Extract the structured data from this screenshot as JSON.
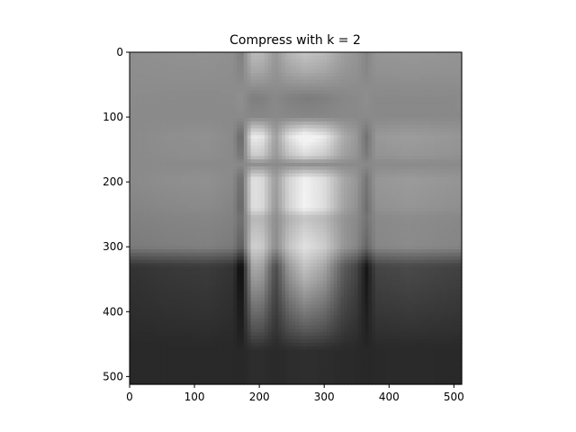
{
  "chart_data": {
    "type": "heatmap",
    "title": "Compress with k = 2",
    "xlabel": "",
    "ylabel": "",
    "colormap": "gray",
    "image_size": [
      512,
      512
    ],
    "xlim": [
      0,
      512
    ],
    "ylim": [
      512,
      0
    ],
    "xticks": [
      0,
      100,
      200,
      300,
      400,
      500
    ],
    "yticks": [
      0,
      100,
      200,
      300,
      400,
      500
    ],
    "xtick_labels": [
      "0",
      "100",
      "200",
      "300",
      "400",
      "500"
    ],
    "ytick_labels": [
      "0",
      "100",
      "200",
      "300",
      "400",
      "500"
    ],
    "rank_k": 2,
    "column_profile": [
      {
        "x": 0,
        "v": 0.5
      },
      {
        "x": 60,
        "v": 0.52
      },
      {
        "x": 120,
        "v": 0.53
      },
      {
        "x": 160,
        "v": 0.5
      },
      {
        "x": 172,
        "v": 0.34
      },
      {
        "x": 190,
        "v": 0.92
      },
      {
        "x": 205,
        "v": 0.88
      },
      {
        "x": 225,
        "v": 0.58
      },
      {
        "x": 245,
        "v": 0.85
      },
      {
        "x": 270,
        "v": 1.0
      },
      {
        "x": 300,
        "v": 0.9
      },
      {
        "x": 330,
        "v": 0.64
      },
      {
        "x": 350,
        "v": 0.56
      },
      {
        "x": 365,
        "v": 0.4
      },
      {
        "x": 380,
        "v": 0.56
      },
      {
        "x": 430,
        "v": 0.58
      },
      {
        "x": 512,
        "v": 0.55
      }
    ],
    "row_profile": [
      {
        "y": 0,
        "v": 0.56
      },
      {
        "y": 30,
        "v": 0.44
      },
      {
        "y": 70,
        "v": 0.22
      },
      {
        "y": 100,
        "v": 0.28
      },
      {
        "y": 130,
        "v": 0.88
      },
      {
        "y": 160,
        "v": 0.68
      },
      {
        "y": 172,
        "v": 0.3
      },
      {
        "y": 195,
        "v": 0.8
      },
      {
        "y": 240,
        "v": 0.84
      },
      {
        "y": 255,
        "v": 0.62
      },
      {
        "y": 300,
        "v": 0.8
      },
      {
        "y": 330,
        "v": 1.0
      },
      {
        "y": 350,
        "v": 0.92
      },
      {
        "y": 390,
        "v": 0.72
      },
      {
        "y": 430,
        "v": 0.52
      },
      {
        "y": 460,
        "v": 0.32
      },
      {
        "y": 512,
        "v": 0.32
      }
    ],
    "offset_profile": [
      {
        "y": 0,
        "v": 0.56
      },
      {
        "y": 100,
        "v": 0.54
      },
      {
        "y": 200,
        "v": 0.54
      },
      {
        "y": 300,
        "v": 0.48
      },
      {
        "y": 330,
        "v": 0.2
      },
      {
        "y": 400,
        "v": 0.18
      },
      {
        "y": 450,
        "v": 0.16
      },
      {
        "y": 512,
        "v": 0.16
      }
    ]
  }
}
